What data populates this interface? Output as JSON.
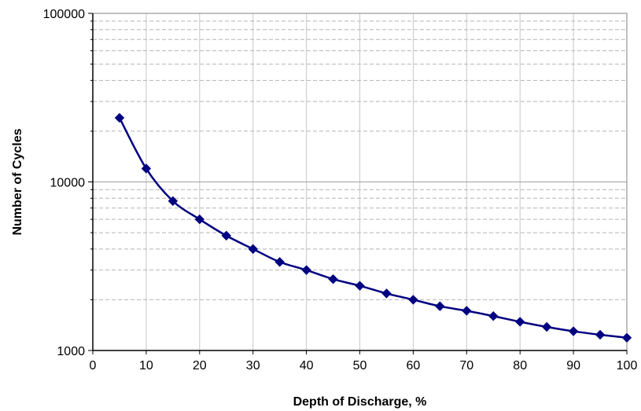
{
  "chart_data": {
    "type": "line",
    "title": "",
    "xlabel": "Depth of Discharge, %",
    "ylabel": "Number of Cycles",
    "xlim": [
      0,
      100
    ],
    "ylim": [
      1000,
      100000
    ],
    "y_scale": "log",
    "x_ticks": [
      0,
      10,
      20,
      30,
      40,
      50,
      60,
      70,
      80,
      90,
      100
    ],
    "x_tick_labels": [
      "0",
      "10",
      "20",
      "30",
      "40",
      "50",
      "60",
      "70",
      "80",
      "90",
      "100"
    ],
    "y_ticks": [
      1000,
      10000,
      100000
    ],
    "y_tick_labels": [
      "1000",
      "10000",
      "100000"
    ],
    "grid": true,
    "legend": "none",
    "series": [
      {
        "color": "#000080",
        "marker": "diamond",
        "smooth": true,
        "x": [
          5,
          10,
          15,
          20,
          25,
          30,
          35,
          40,
          45,
          50,
          55,
          60,
          65,
          70,
          75,
          80,
          85,
          90,
          95,
          100
        ],
        "values": [
          24000,
          12000,
          7700,
          6000,
          4800,
          4000,
          3350,
          3000,
          2650,
          2420,
          2180,
          2000,
          1830,
          1720,
          1600,
          1480,
          1380,
          1300,
          1240,
          1190
        ]
      }
    ]
  }
}
